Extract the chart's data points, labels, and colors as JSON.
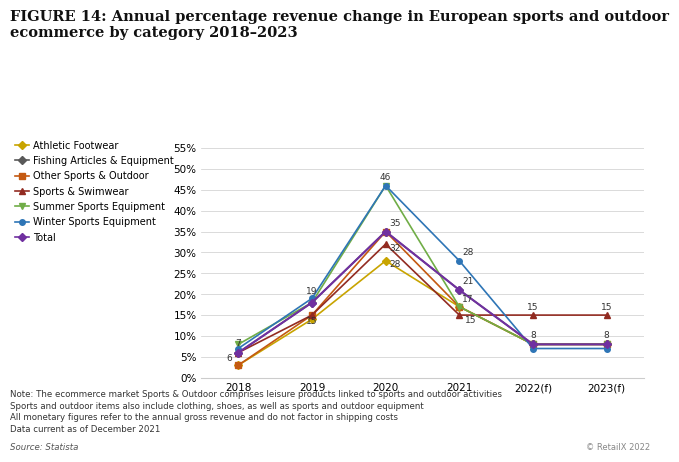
{
  "title_line1": "FIGURE 14: Annual percentage revenue change in European sports and outdoor",
  "title_line2": "ecommerce by category 2018–2023",
  "x_labels": [
    "2018",
    "2019",
    "2020",
    "2021",
    "2022(f)",
    "2023(f)"
  ],
  "series": [
    {
      "name": "Athletic Footwear",
      "values": [
        3,
        14,
        28,
        17,
        8,
        8
      ],
      "color": "#c8a400",
      "marker": "D",
      "linewidth": 1.2,
      "markersize": 4
    },
    {
      "name": "Fishing Articles & Equipment",
      "values": [
        6,
        18,
        35,
        21,
        8,
        8
      ],
      "color": "#595959",
      "marker": "D",
      "linewidth": 1.2,
      "markersize": 4
    },
    {
      "name": "Other Sports & Outdoor",
      "values": [
        3,
        15,
        35,
        17,
        8,
        8
      ],
      "color": "#c45911",
      "marker": "s",
      "linewidth": 1.2,
      "markersize": 4
    },
    {
      "name": "Sports & Swimwear",
      "values": [
        6,
        15,
        32,
        15,
        15,
        15
      ],
      "color": "#922b21",
      "marker": "^",
      "linewidth": 1.2,
      "markersize": 5
    },
    {
      "name": "Summer Sports Equipment",
      "values": [
        8,
        18,
        46,
        17,
        8,
        8
      ],
      "color": "#70ad47",
      "marker": "v",
      "linewidth": 1.2,
      "markersize": 5
    },
    {
      "name": "Winter Sports Equipment",
      "values": [
        7,
        19,
        46,
        28,
        7,
        7
      ],
      "color": "#2e75b6",
      "marker": "o",
      "linewidth": 1.2,
      "markersize": 4
    },
    {
      "name": "Total",
      "values": [
        6,
        18,
        35,
        21,
        8,
        8
      ],
      "color": "#7030a0",
      "marker": "D",
      "linewidth": 1.5,
      "markersize": 4
    }
  ],
  "ylim": [
    0,
    58
  ],
  "yticks": [
    0,
    5,
    10,
    15,
    20,
    25,
    30,
    35,
    40,
    45,
    50,
    55
  ],
  "footnote": "Note: The ecommerce market Sports & Outdoor comprises leisure products linked to sports and outdoor activities\nSports and outdoor items also include clothing, shoes, as well as sports and outdoor equipment\nAll monetary figures refer to the annual gross revenue and do not factor in shipping costs\nData current as of December 2021",
  "source": "Source: Statista",
  "copyright": "© RetailX 2022",
  "bg_color": "#ffffff",
  "title_fontsize": 10.5,
  "legend_fontsize": 7,
  "axis_fontsize": 7.5,
  "annotation_fontsize": 6.5
}
